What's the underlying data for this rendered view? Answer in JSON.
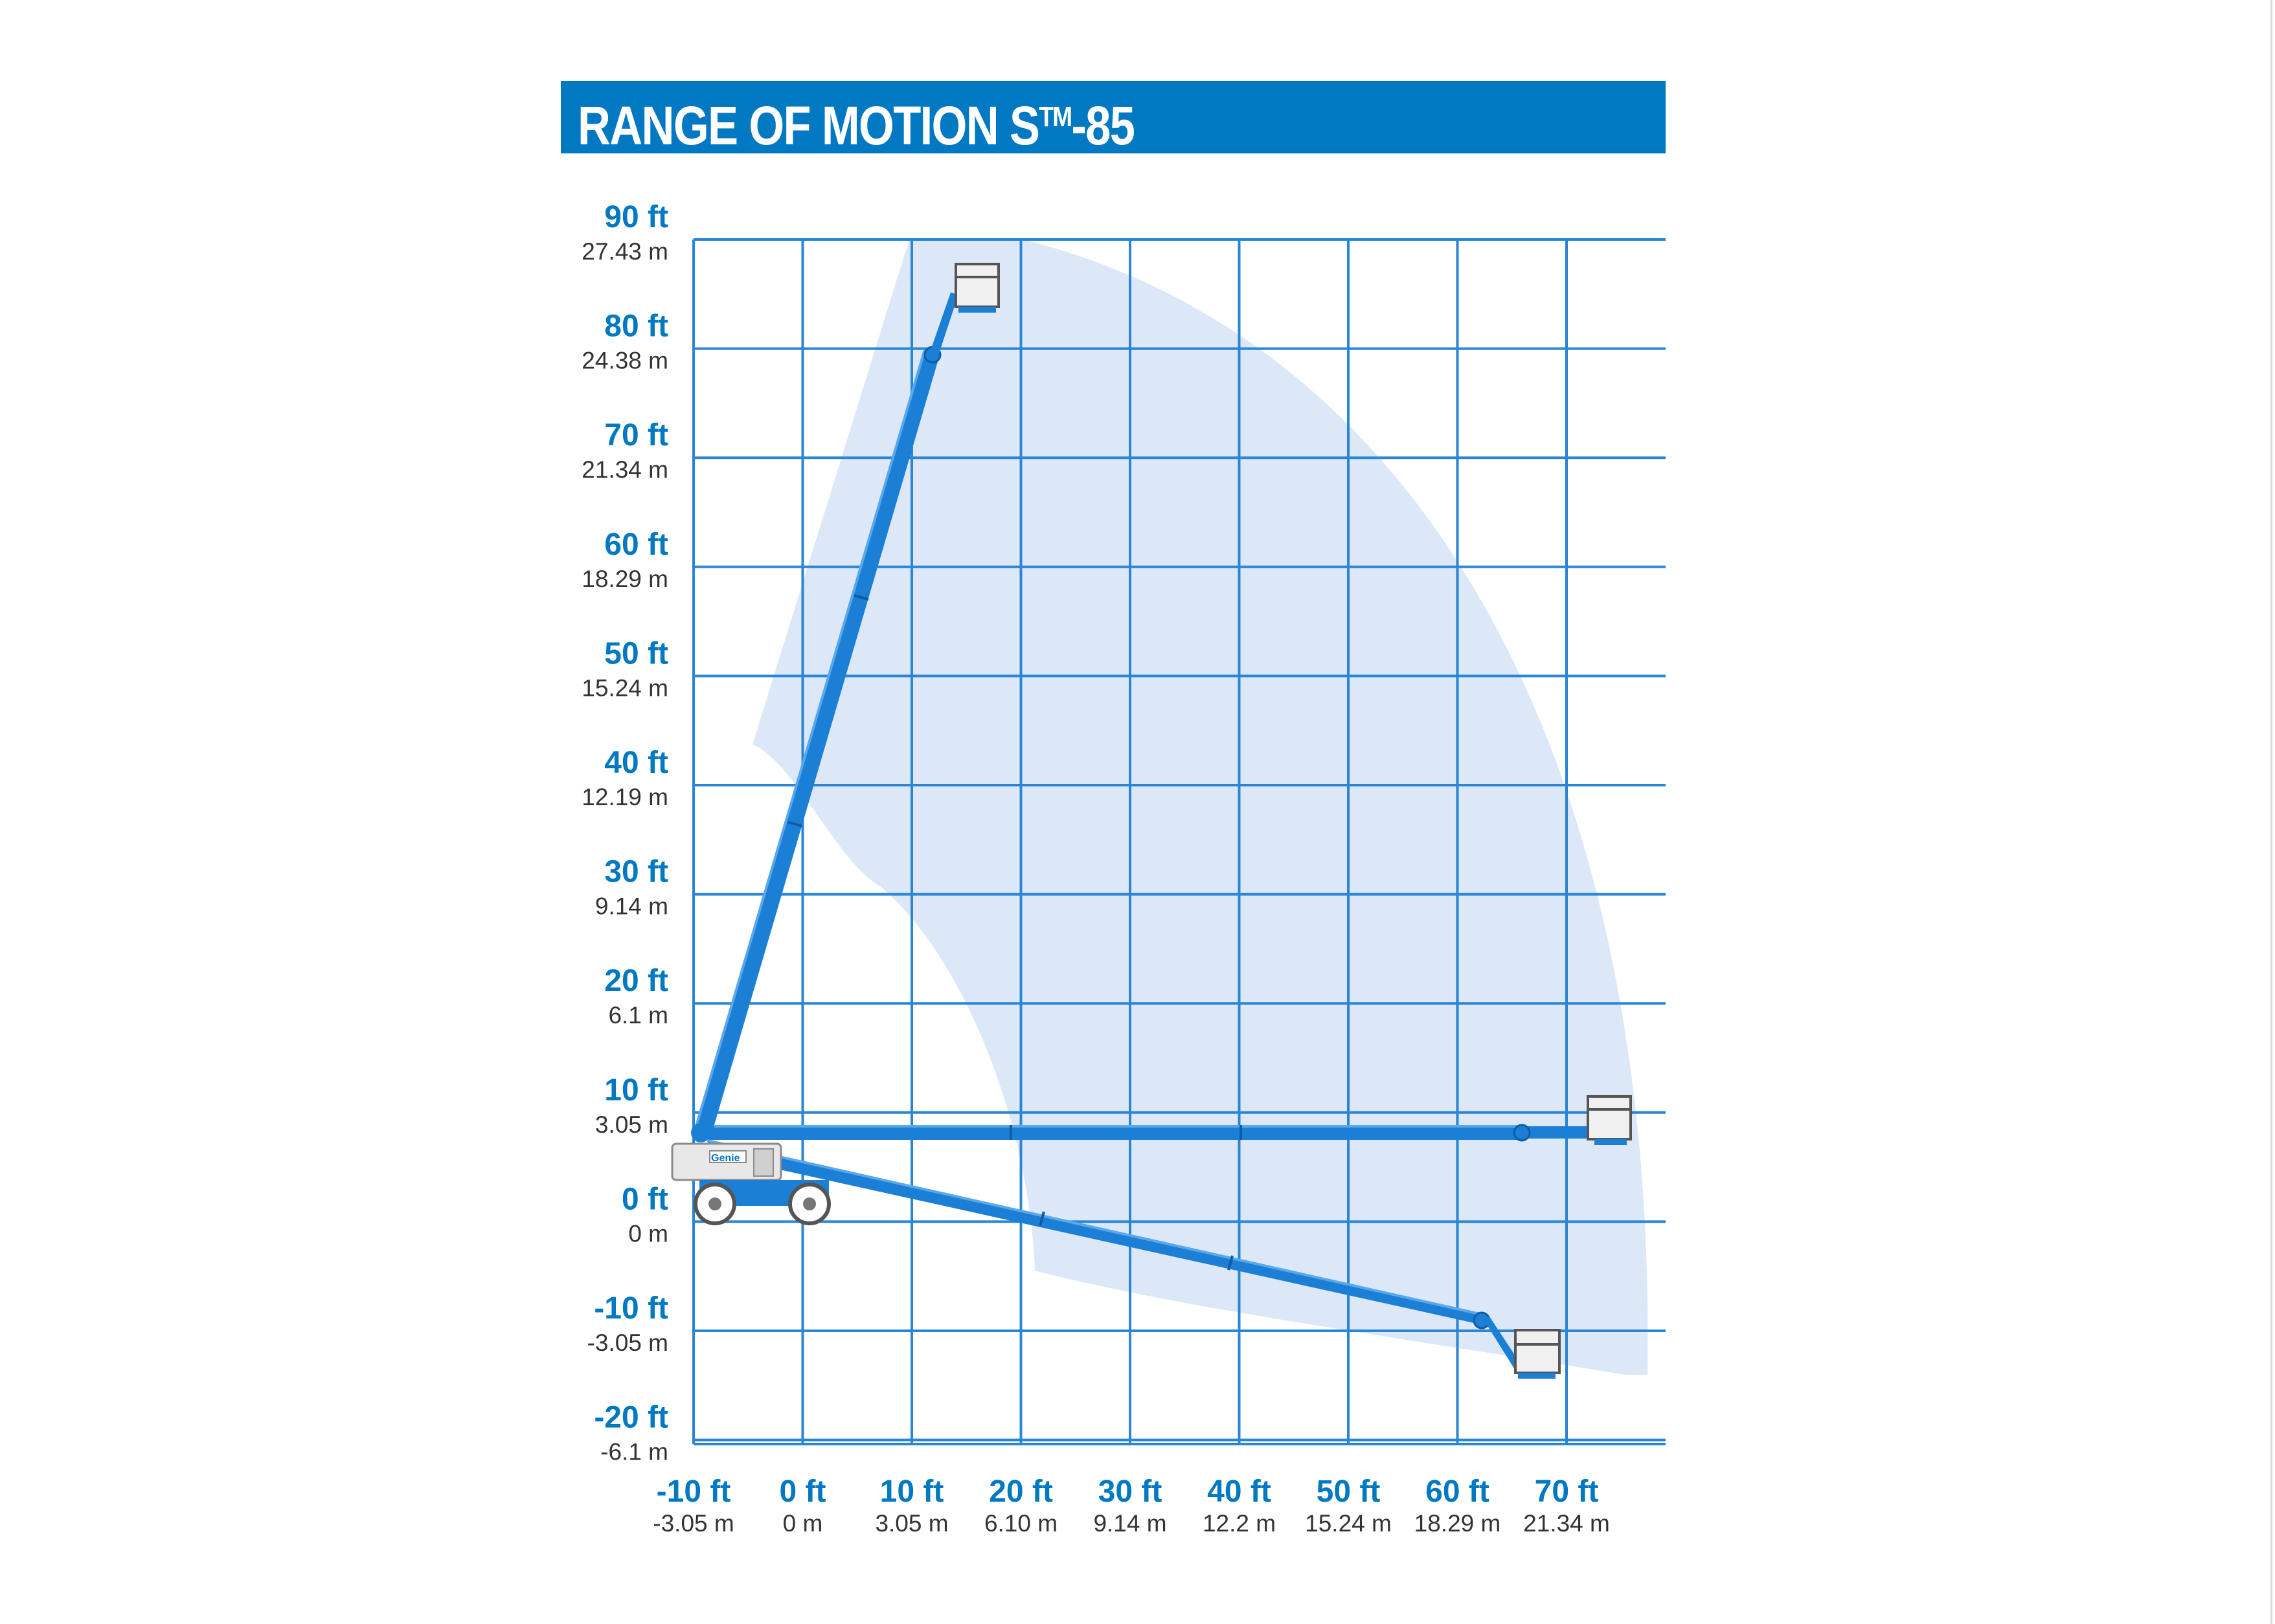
{
  "title": {
    "text": "RANGE OF MOTION S",
    "tm": "TM",
    "suffix": "-85"
  },
  "colors": {
    "brand_blue": "#0079c2",
    "grid_blue": "#2a86d4",
    "envelope_fill": "#dce8f8",
    "boom_blue": "#1b7fd6",
    "machine_gray": "#c8c8c8"
  },
  "y_axis": {
    "ticks": [
      {
        "ft": "90 ft",
        "m": "27.43 m",
        "value": 90
      },
      {
        "ft": "80 ft",
        "m": "24.38 m",
        "value": 80
      },
      {
        "ft": "70 ft",
        "m": "21.34 m",
        "value": 70
      },
      {
        "ft": "60 ft",
        "m": "18.29 m",
        "value": 60
      },
      {
        "ft": "50 ft",
        "m": "15.24 m",
        "value": 50
      },
      {
        "ft": "40 ft",
        "m": "12.19 m",
        "value": 40
      },
      {
        "ft": "30 ft",
        "m": "9.14 m",
        "value": 30
      },
      {
        "ft": "20 ft",
        "m": "6.1 m",
        "value": 20
      },
      {
        "ft": "10 ft",
        "m": "3.05 m",
        "value": 10
      },
      {
        "ft": "0 ft",
        "m": "0 m",
        "value": 0
      },
      {
        "ft": "-10 ft",
        "m": "-3.05 m",
        "value": -10
      },
      {
        "ft": "-20 ft",
        "m": "-6.1 m",
        "value": -20
      }
    ]
  },
  "x_axis": {
    "ticks": [
      {
        "ft": "-10 ft",
        "m": "-3.05 m",
        "value": -10
      },
      {
        "ft": "0 ft",
        "m": "0 m",
        "value": 0
      },
      {
        "ft": "10 ft",
        "m": "3.05 m",
        "value": 10
      },
      {
        "ft": "20 ft",
        "m": "6.10 m",
        "value": 20
      },
      {
        "ft": "30 ft",
        "m": "9.14 m",
        "value": 30
      },
      {
        "ft": "40 ft",
        "m": "12.2 m",
        "value": 40
      },
      {
        "ft": "50 ft",
        "m": "15.24 m",
        "value": 50
      },
      {
        "ft": "60 ft",
        "m": "18.29 m",
        "value": 60
      },
      {
        "ft": "70 ft",
        "m": "21.34 m",
        "value": 70
      }
    ]
  },
  "machine": {
    "brand": "Genie"
  }
}
